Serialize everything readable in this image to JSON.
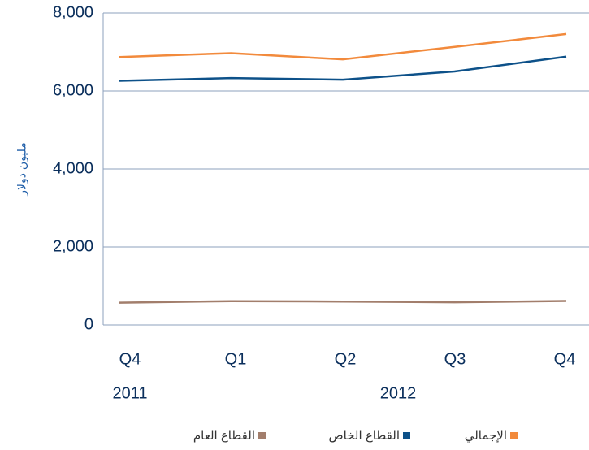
{
  "chart_data": {
    "type": "line",
    "y_label": "مليون دولار",
    "categories": [
      "Q4",
      "Q1",
      "Q2",
      "Q3",
      "Q4"
    ],
    "year_labels": [
      "2011",
      "2012"
    ],
    "series": [
      {
        "name": "الإجمالي",
        "color": "#f28a3c",
        "values": [
          6870,
          6970,
          6810,
          7130,
          7460
        ]
      },
      {
        "name": "القطاع الخاص",
        "color": "#0d5189",
        "values": [
          6260,
          6330,
          6290,
          6500,
          6880
        ]
      },
      {
        "name": "القطاع العام",
        "color": "#a27e6c",
        "values": [
          570,
          610,
          600,
          580,
          615
        ]
      }
    ],
    "ylim": [
      0,
      8000
    ],
    "yticks": [
      0,
      {
        "value": 2000,
        "label": "2,000"
      },
      {
        "value": 4000,
        "label": "4,000"
      },
      {
        "value": 6000,
        "label": "6,000"
      },
      {
        "value": 8000,
        "label": "8,000"
      }
    ],
    "grid": true
  }
}
